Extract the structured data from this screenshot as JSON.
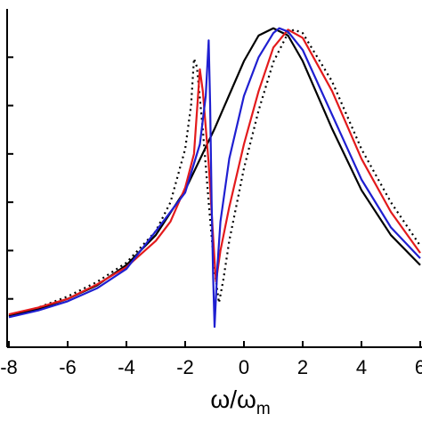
{
  "chart_data": {
    "type": "line",
    "x_label": {
      "text": "ω/ω",
      "subscript": "m"
    },
    "xlim": [
      -8.06,
      6.06
    ],
    "xticks": [
      -8,
      -6,
      -4,
      -2,
      0,
      2,
      4,
      6
    ],
    "ylim": [
      0,
      7
    ],
    "yticks": [
      1,
      2,
      3,
      4,
      5,
      6
    ],
    "series": [
      {
        "color": "#000000",
        "dash": false,
        "x": [
          -8,
          -7,
          -6,
          -5,
          -4,
          -3,
          -2,
          -1,
          0,
          0.5,
          1,
          1.5,
          2,
          3,
          4,
          5,
          6
        ],
        "values": [
          0.64,
          0.79,
          1.0,
          1.28,
          1.7,
          2.32,
          3.25,
          4.52,
          5.92,
          6.45,
          6.6,
          6.45,
          5.92,
          4.52,
          3.25,
          2.32,
          1.7
        ]
      },
      {
        "color": "#000000",
        "dash": true,
        "x": [
          -8,
          -7,
          -6,
          -5,
          -4,
          -3,
          -2.5,
          -2,
          -1.8,
          -1.7,
          -1.6,
          -1.4,
          -1.2,
          -1.0,
          -0.85,
          -0.7,
          -0.5,
          0,
          0.5,
          1,
          1.5,
          1.7,
          2,
          3,
          4,
          5,
          6
        ],
        "values": [
          0.65,
          0.82,
          1.05,
          1.35,
          1.75,
          2.4,
          3.0,
          4.1,
          5.0,
          5.97,
          5.8,
          4.5,
          3.0,
          1.6,
          0.92,
          1.4,
          2.2,
          3.7,
          4.9,
          5.9,
          6.5,
          6.57,
          6.5,
          5.5,
          4.1,
          3.0,
          2.1
        ]
      },
      {
        "color": "#e31a1c",
        "dash": false,
        "x": [
          -8,
          -7,
          -6,
          -5,
          -4,
          -3,
          -2.5,
          -2,
          -1.7,
          -1.5,
          -1.4,
          -1.2,
          -1.0,
          -0.95,
          -0.8,
          -0.5,
          0,
          0.5,
          1,
          1.5,
          2,
          3,
          4,
          5,
          6
        ],
        "values": [
          0.68,
          0.82,
          1.0,
          1.3,
          1.66,
          2.2,
          2.6,
          3.3,
          4.0,
          5.75,
          5.3,
          3.8,
          1.8,
          1.36,
          2.0,
          2.9,
          4.2,
          5.3,
          6.2,
          6.57,
          6.4,
          5.3,
          3.9,
          2.8,
          1.95
        ]
      },
      {
        "color": "#1f1fd1",
        "dash": false,
        "x": [
          -8,
          -7,
          -6,
          -5,
          -4,
          -3,
          -2,
          -1.5,
          -1.3,
          -1.2,
          -1.15,
          -1.1,
          -1.05,
          -1.0,
          -0.9,
          -0.8,
          -0.5,
          0,
          0.5,
          1,
          1.2,
          1.5,
          2,
          3,
          4,
          5,
          6
        ],
        "values": [
          0.62,
          0.76,
          0.95,
          1.22,
          1.62,
          2.4,
          3.2,
          4.2,
          5.2,
          6.35,
          5.0,
          3.0,
          1.5,
          0.42,
          1.7,
          2.6,
          3.9,
          5.2,
          6.0,
          6.5,
          6.6,
          6.53,
          6.15,
          4.81,
          3.47,
          2.48,
          1.84
        ]
      }
    ]
  }
}
